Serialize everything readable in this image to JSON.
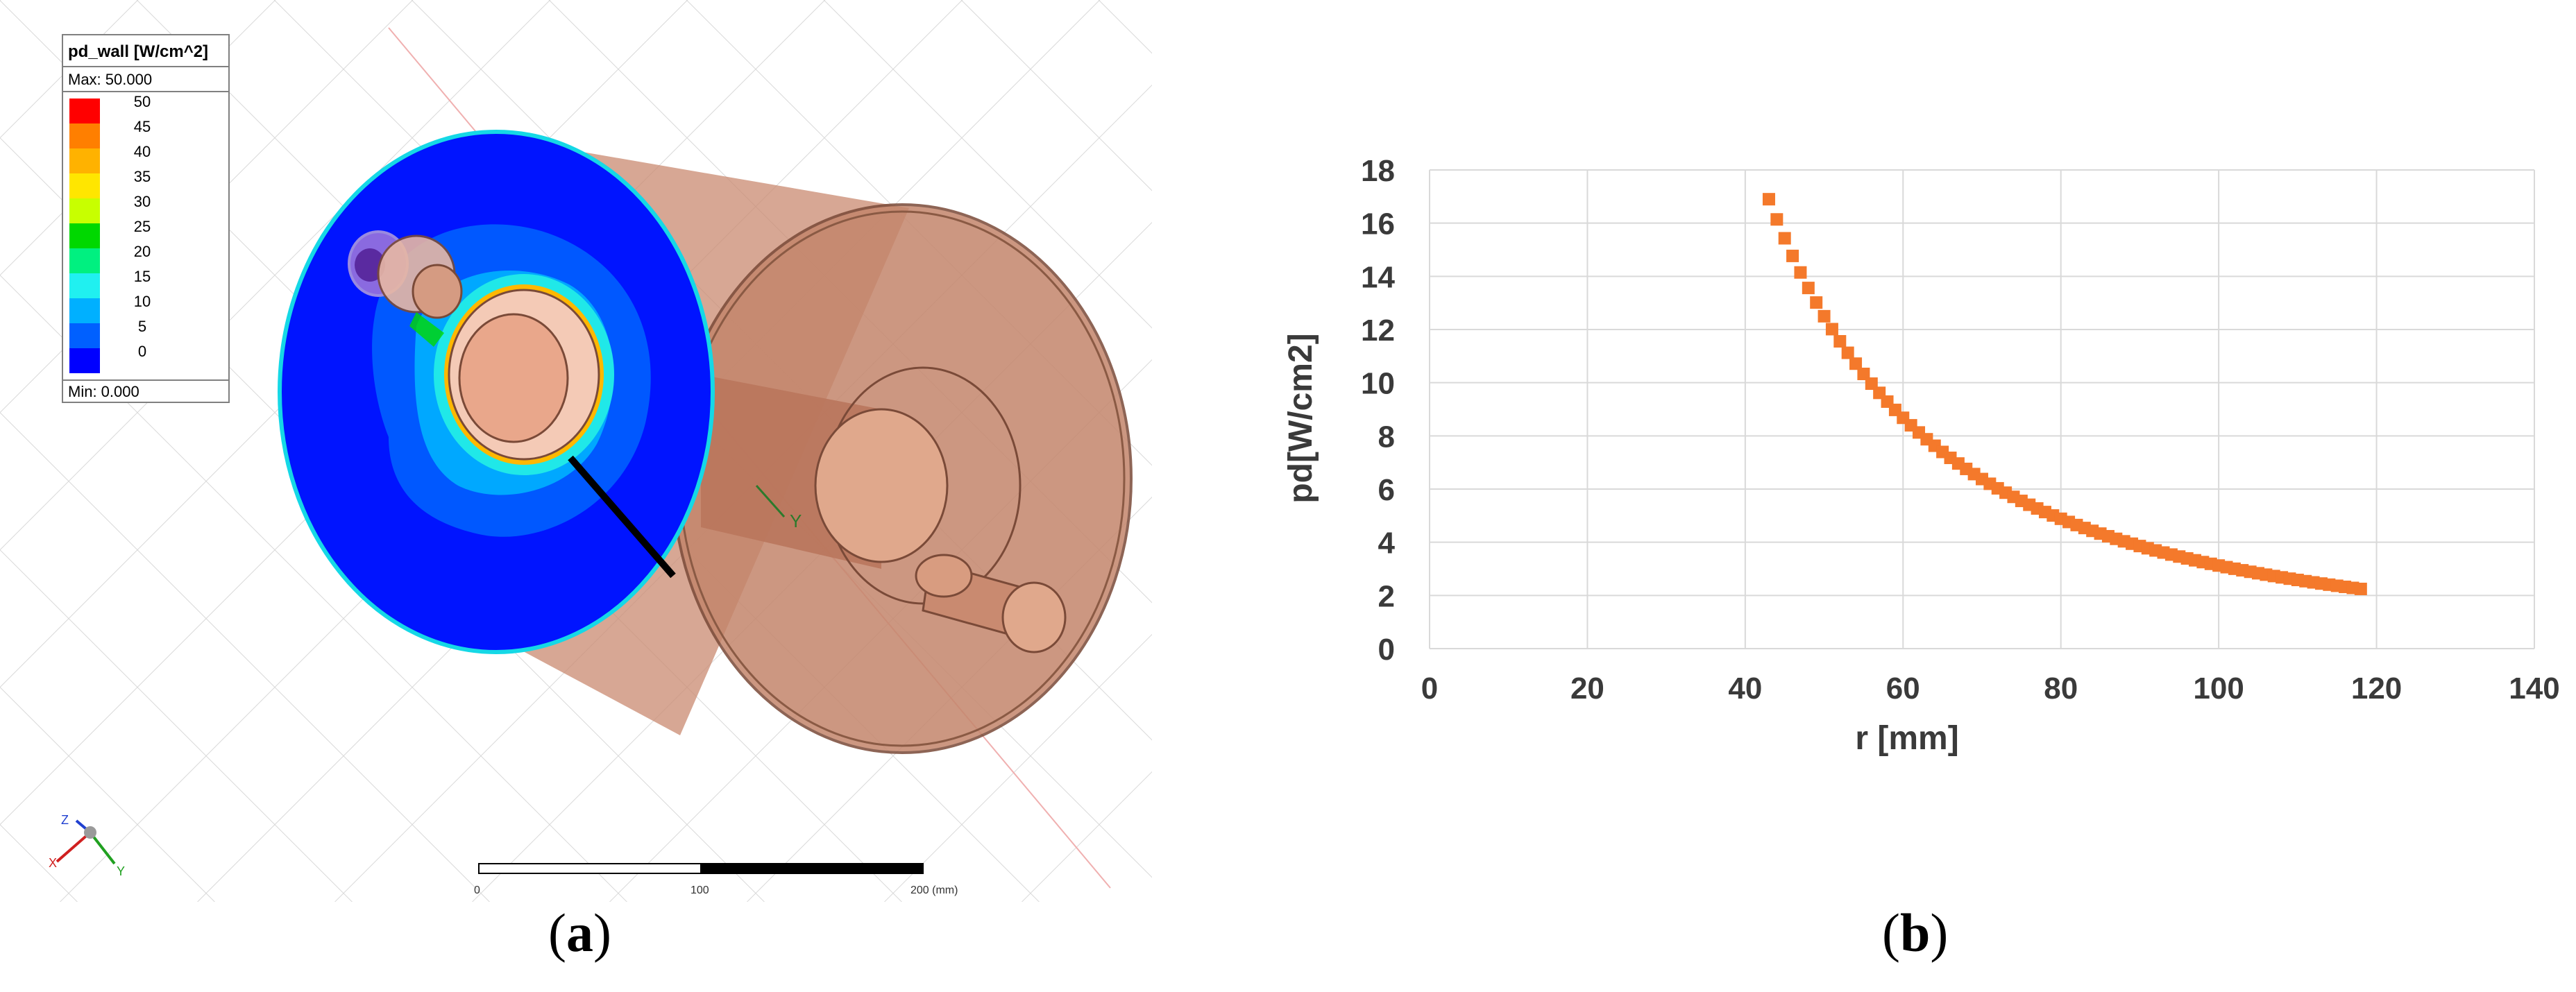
{
  "panel_a": {
    "legend": {
      "title": "pd_wall [W/cm^2]",
      "max_label": "Max: 50.000",
      "min_label": "Min:  0.000",
      "levels": [
        "50",
        "45",
        "40",
        "35",
        "30",
        "25",
        "20",
        "15",
        "10",
        "5",
        "0"
      ],
      "colors": [
        "#ff0000",
        "#ff7f00",
        "#ffb200",
        "#ffe600",
        "#c8ff00",
        "#00d800",
        "#00f080",
        "#20f0f0",
        "#00b0ff",
        "#0060ff",
        "#0000ff"
      ]
    },
    "scale_bar": {
      "labels": [
        "0",
        "100",
        "200 (mm)"
      ]
    },
    "axis_triad": {
      "x": "X",
      "y": "Y",
      "z": "Z"
    },
    "model_axis_label": "Y",
    "colors": {
      "field_blue": "#0014ff",
      "copper": "#c98a70",
      "cyan_ring": "#15d8e6"
    }
  },
  "chart_data": {
    "type": "scatter",
    "xlabel": "r [mm]",
    "ylabel": "pd[W/cm2]",
    "xlim": [
      0,
      140
    ],
    "ylim": [
      0,
      18
    ],
    "xticks": [
      0,
      20,
      40,
      60,
      80,
      100,
      120,
      140
    ],
    "yticks": [
      0,
      2,
      4,
      6,
      8,
      10,
      12,
      14,
      16,
      18
    ],
    "grid": true,
    "marker_color": "#f4792b",
    "marker": "square",
    "x_start": 43,
    "x_end": 118,
    "x_step": 1,
    "y_at_x_start": 16.9,
    "falloff": "inverse-square"
  },
  "captions": {
    "a": "a",
    "b": "b"
  }
}
